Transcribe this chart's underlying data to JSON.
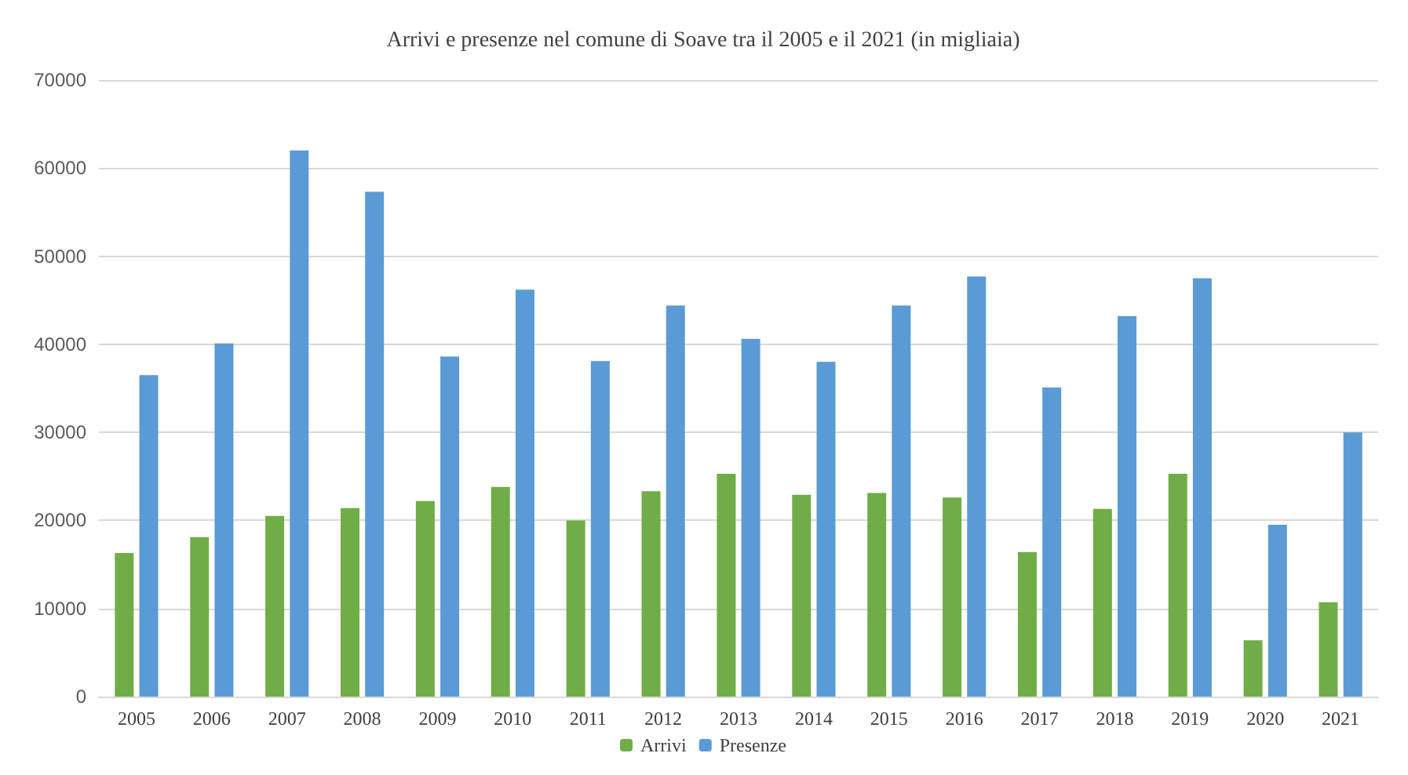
{
  "chart_data": {
    "type": "bar",
    "title": "Arrivi e presenze nel comune di Soave tra il 2005 e il 2021 (in migliaia)",
    "categories": [
      "2005",
      "2006",
      "2007",
      "2008",
      "2009",
      "2010",
      "2011",
      "2012",
      "2013",
      "2014",
      "2015",
      "2016",
      "2017",
      "2018",
      "2019",
      "2020",
      "2021"
    ],
    "series": [
      {
        "name": "Arrivi",
        "color": "#70ad47",
        "values": [
          16300,
          18100,
          20500,
          21400,
          22200,
          23800,
          20000,
          23300,
          25300,
          22900,
          23100,
          22600,
          16400,
          21300,
          25300,
          6400,
          10700
        ]
      },
      {
        "name": "Presenze",
        "color": "#5b9bd5",
        "values": [
          36500,
          40100,
          62000,
          57300,
          38600,
          46200,
          38100,
          44400,
          40600,
          38000,
          44400,
          47700,
          35100,
          43200,
          47500,
          19500,
          30000
        ]
      }
    ],
    "ylim": [
      0,
      70000
    ],
    "yticks": [
      0,
      10000,
      20000,
      30000,
      40000,
      50000,
      60000,
      70000
    ],
    "grid": "y",
    "legend": "bottom"
  }
}
